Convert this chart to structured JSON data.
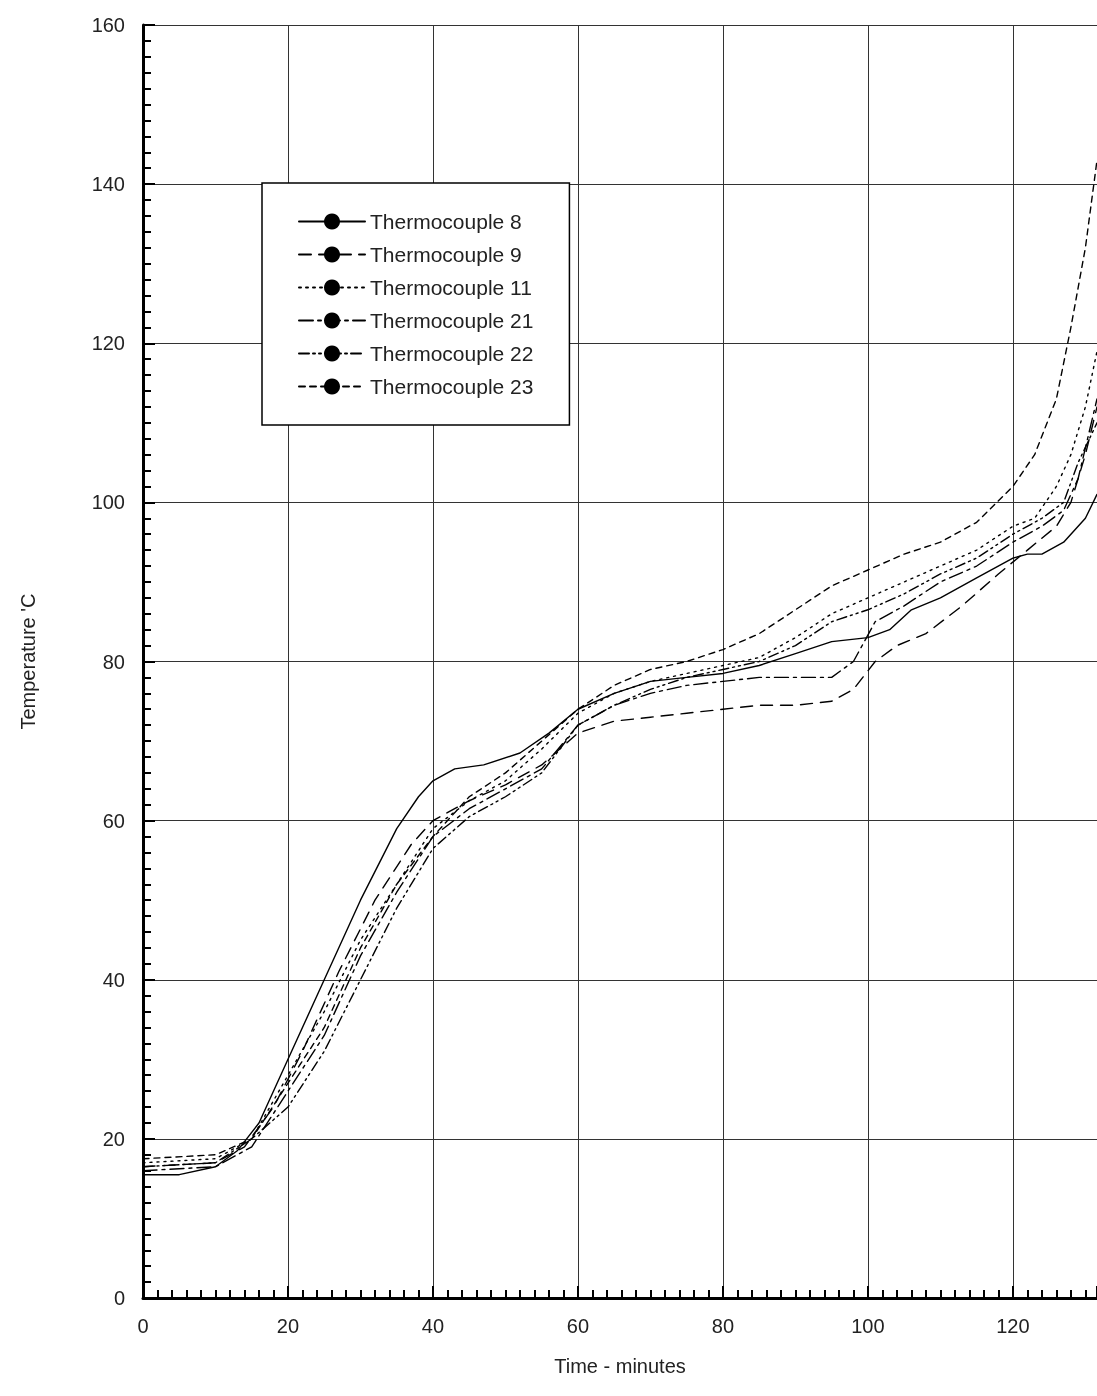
{
  "chart_data": {
    "type": "line",
    "xlabel": "Time - minutes",
    "ylabel": "Temperature 'C",
    "xlim": [
      0,
      131.6
    ],
    "ylim": [
      0,
      160
    ],
    "xticks": [
      0,
      20,
      40,
      60,
      80,
      100,
      120
    ],
    "yticks": [
      0,
      20,
      40,
      60,
      80,
      100,
      120,
      140,
      160
    ],
    "grid": true,
    "legend": "top left",
    "marker": "none",
    "series": [
      {
        "name": "Thermocouple 8",
        "color": "#000000",
        "line_style": "solid",
        "x": [
          0,
          5,
          10,
          13,
          16,
          20,
          25,
          30,
          35,
          38,
          40,
          43,
          47,
          52,
          56,
          60,
          65,
          70,
          75,
          80,
          85,
          90,
          95,
          100,
          103,
          106,
          110,
          115,
          120,
          122,
          124,
          127,
          130,
          131.6
        ],
        "values": [
          15.5,
          15.5,
          16.5,
          18.5,
          22,
          30,
          40,
          50,
          59,
          63,
          65,
          66.5,
          67,
          68.5,
          71,
          74,
          76,
          77.5,
          78,
          78.5,
          79.5,
          81,
          82.5,
          83,
          84,
          86.5,
          88,
          90.5,
          93,
          93.5,
          93.5,
          95,
          98,
          101
        ]
      },
      {
        "name": "Thermocouple 9",
        "color": "#000000",
        "line_style": "dashed",
        "x": [
          0,
          10,
          14,
          18,
          22,
          27,
          32,
          37,
          40,
          45,
          50,
          55,
          60,
          65,
          70,
          75,
          80,
          85,
          90,
          95,
          98,
          101,
          104,
          108,
          113,
          118,
          122,
          126,
          128,
          130,
          131.6
        ],
        "values": [
          16.5,
          17,
          19,
          24,
          31,
          41,
          50,
          57,
          60,
          62.5,
          64.5,
          67,
          71,
          72.5,
          73,
          73.5,
          74,
          74.5,
          74.5,
          75,
          76.5,
          80,
          82,
          83.5,
          87,
          91,
          94,
          97,
          100,
          106,
          112
        ]
      },
      {
        "name": "Thermocouple 11",
        "color": "#000000",
        "line_style": "dotted",
        "x": [
          0,
          10,
          15,
          20,
          25,
          30,
          35,
          40,
          45,
          50,
          55,
          60,
          65,
          70,
          75,
          80,
          85,
          90,
          95,
          100,
          105,
          110,
          115,
          120,
          123,
          126,
          128,
          130,
          131.6
        ],
        "values": [
          17,
          17.5,
          20,
          28,
          36,
          45,
          52,
          59,
          62.5,
          65,
          69,
          73.5,
          76,
          77.5,
          78.5,
          79.5,
          80.5,
          83,
          86,
          88,
          90,
          92,
          94,
          97,
          98,
          102,
          106,
          112,
          119
        ]
      },
      {
        "name": "Thermocouple 21",
        "color": "#000000",
        "line_style": "dashed",
        "x": [
          0,
          10,
          15,
          20,
          25,
          30,
          35,
          40,
          45,
          50,
          55,
          60,
          65,
          70,
          75,
          80,
          85,
          90,
          95,
          98,
          101,
          105,
          110,
          115,
          120,
          124,
          127,
          129,
          131.6
        ],
        "values": [
          16,
          16.5,
          19,
          26,
          33,
          43,
          51,
          58,
          61.5,
          64,
          66.5,
          72,
          74.5,
          76,
          77,
          77.5,
          78,
          78,
          78,
          80,
          85,
          87,
          90,
          92,
          95,
          97,
          99,
          103,
          113
        ]
      },
      {
        "name": "Thermocouple 22",
        "color": "#000000",
        "line_style": "dashed",
        "x": [
          0,
          10,
          15,
          20,
          25,
          30,
          35,
          40,
          45,
          50,
          55,
          60,
          65,
          70,
          75,
          80,
          85,
          90,
          95,
          100,
          105,
          110,
          115,
          120,
          124,
          127,
          129,
          131.6
        ],
        "values": [
          16.5,
          17,
          20,
          24,
          31,
          40,
          49,
          56.5,
          60.5,
          63,
          66,
          72,
          74.5,
          76.5,
          78,
          79,
          80,
          82,
          85,
          86.5,
          88.5,
          91,
          93,
          96,
          98,
          100,
          105,
          110
        ]
      },
      {
        "name": "Thermocouple 23",
        "color": "#000000",
        "line_style": "dashed",
        "x": [
          0,
          10,
          15,
          20,
          25,
          30,
          35,
          40,
          45,
          50,
          55,
          60,
          65,
          70,
          75,
          80,
          85,
          90,
          95,
          100,
          105,
          110,
          115,
          120,
          123,
          126,
          128,
          130,
          131.6
        ],
        "values": [
          17.5,
          18,
          20,
          27,
          34,
          44,
          52,
          58,
          63,
          66,
          70,
          74,
          77,
          79,
          80,
          81.5,
          83.5,
          86.5,
          89.5,
          91.5,
          93.5,
          95,
          97.5,
          102,
          106,
          113,
          122,
          132,
          143
        ]
      }
    ]
  }
}
